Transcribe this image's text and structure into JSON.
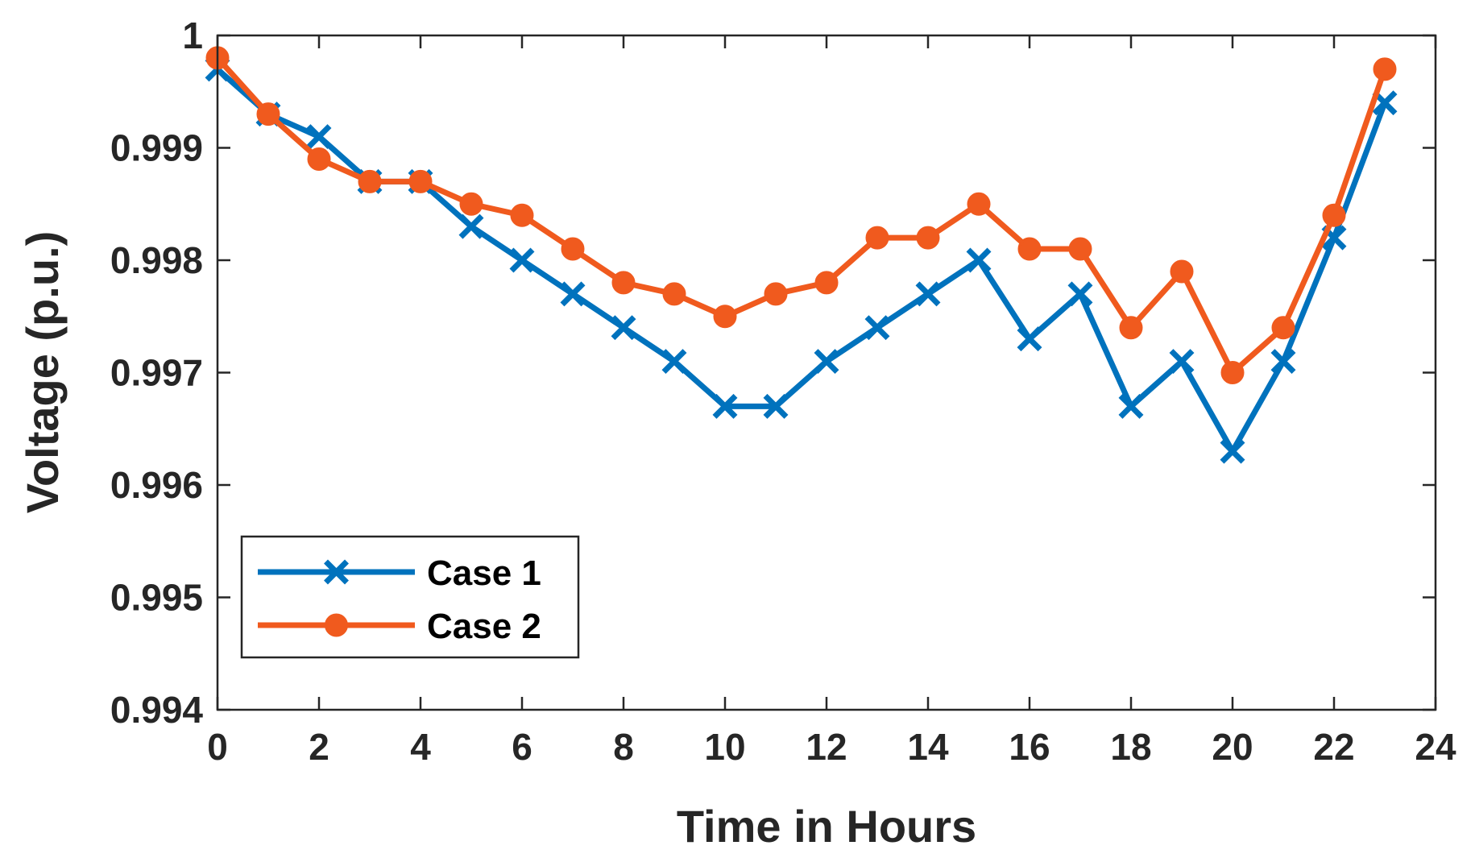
{
  "chart_data": {
    "type": "line",
    "title": "",
    "xlabel": "Time in Hours",
    "ylabel": "Voltage (p.u.)",
    "xlim": [
      0,
      24
    ],
    "ylim": [
      0.994,
      1.0
    ],
    "xticks": [
      0,
      2,
      4,
      6,
      8,
      10,
      12,
      14,
      16,
      18,
      20,
      22,
      24
    ],
    "xtick_labels": [
      "0",
      "2",
      "4",
      "6",
      "8",
      "10",
      "12",
      "14",
      "16",
      "18",
      "20",
      "22",
      "24"
    ],
    "yticks": [
      0.994,
      0.995,
      0.996,
      0.997,
      0.998,
      0.999,
      1.0
    ],
    "ytick_labels": [
      "0.994",
      "0.995",
      "0.996",
      "0.997",
      "0.998",
      "0.999",
      "1"
    ],
    "grid": false,
    "legend_position": "bottom-left",
    "x": [
      0,
      1,
      2,
      3,
      4,
      5,
      6,
      7,
      8,
      9,
      10,
      11,
      12,
      13,
      14,
      15,
      16,
      17,
      18,
      19,
      20,
      21,
      22,
      23
    ],
    "series": [
      {
        "name": "Case 1",
        "color": "#0072BD",
        "marker": "x",
        "values": [
          0.9997,
          0.9993,
          0.9991,
          0.9987,
          0.9987,
          0.9983,
          0.998,
          0.9977,
          0.9974,
          0.9971,
          0.9967,
          0.9967,
          0.9971,
          0.9974,
          0.9977,
          0.998,
          0.9973,
          0.9977,
          0.9967,
          0.9971,
          0.9963,
          0.9971,
          0.9982,
          0.9994
        ]
      },
      {
        "name": "Case 2",
        "color": "#F05A1E",
        "marker": "o",
        "values": [
          0.9998,
          0.9993,
          0.9989,
          0.9987,
          0.9987,
          0.9985,
          0.9984,
          0.9981,
          0.9978,
          0.9977,
          0.9975,
          0.9977,
          0.9978,
          0.9982,
          0.9982,
          0.9985,
          0.9981,
          0.9981,
          0.9974,
          0.9979,
          0.997,
          0.9974,
          0.9984,
          0.9997
        ]
      }
    ]
  }
}
